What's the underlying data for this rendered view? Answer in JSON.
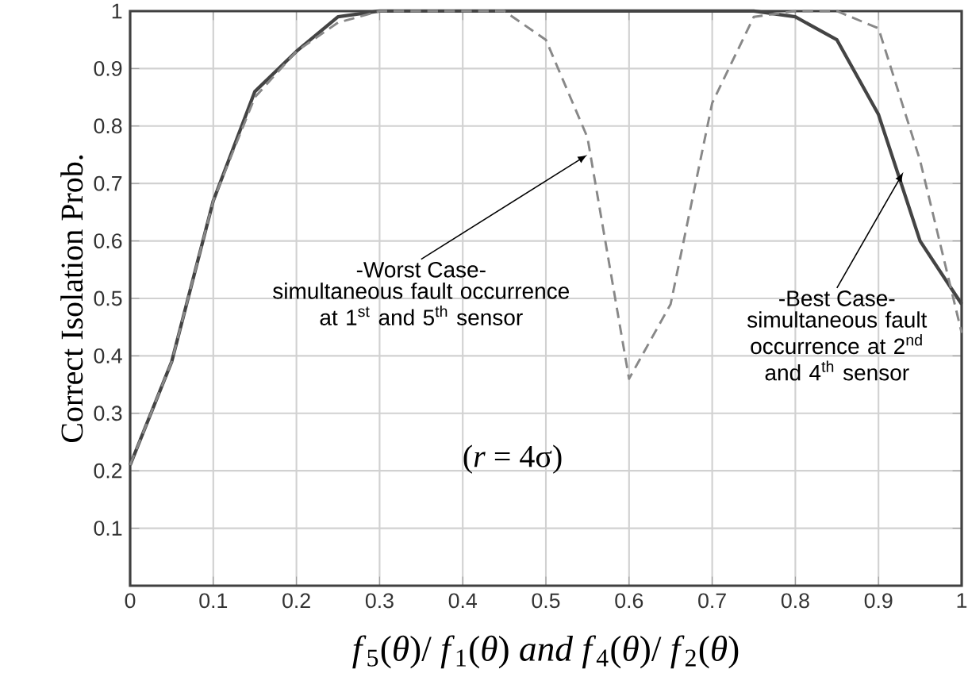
{
  "chart_data": {
    "type": "line",
    "xlabel": "*f*$_{5}$(*θ*)/ *f*$_{1}$(*θ*) *and* *f*$_{4}$(*θ*)/ *f*$_{2}$(*θ*)",
    "ylabel": "Correct Isolation Prob.",
    "x": [
      0,
      0.05,
      0.1,
      0.15,
      0.2,
      0.25,
      0.3,
      0.35,
      0.4,
      0.45,
      0.5,
      0.55,
      0.6,
      0.65,
      0.7,
      0.75,
      0.8,
      0.85,
      0.9,
      0.95,
      1.0
    ],
    "series": [
      {
        "color": "#444444",
        "line_style": "solid",
        "values": [
          0.21,
          0.39,
          0.67,
          0.86,
          0.93,
          0.99,
          1.0,
          1.0,
          1.0,
          1.0,
          1.0,
          1.0,
          1.0,
          1.0,
          1.0,
          1.0,
          0.99,
          0.95,
          0.82,
          0.6,
          0.49
        ]
      },
      {
        "color": "#888888",
        "line_style": "dashed",
        "values": [
          0.21,
          0.39,
          0.67,
          0.85,
          0.93,
          0.98,
          1.0,
          1.0,
          1.0,
          1.0,
          0.95,
          0.78,
          0.36,
          0.49,
          0.84,
          0.99,
          1.0,
          1.0,
          0.97,
          0.74,
          0.44
        ]
      }
    ],
    "xlim": [
      0,
      1
    ],
    "ylim": [
      0,
      1
    ],
    "xticks": [
      0,
      0.1,
      0.2,
      0.3,
      0.4,
      0.5,
      0.6,
      0.7,
      0.8,
      0.9,
      1
    ],
    "yticks": [
      {
        "value": 0,
        "label": null
      },
      0.1,
      0.2,
      0.3,
      0.4,
      0.5,
      0.6,
      0.7,
      0.8,
      0.9,
      1
    ],
    "grid": true,
    "marker": "none",
    "annotations": [
      {
        "text": "-Worst Case-",
        "x": 0.55,
        "y": 0.75
      },
      "simultaneous fault occurrence at 1$^{st}$ and 5$^{th}$ sensor",
      {
        "text": "-Best Case-",
        "x": 0.93,
        "y": 0.72
      },
      "simultaneous fault occurrence at 2$^{nd}$ and 4$^{th}$ sensor",
      "(*r* = 4σ)"
    ]
  }
}
